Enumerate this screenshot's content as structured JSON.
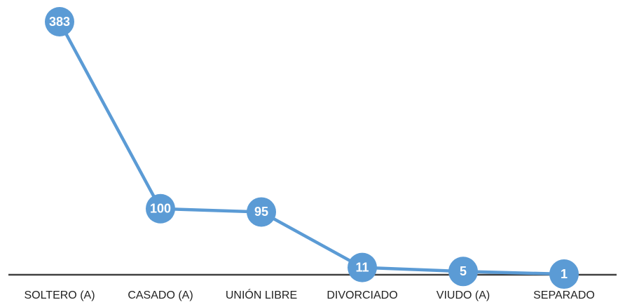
{
  "chart_data": {
    "type": "line",
    "categories": [
      "SOLTERO (A)",
      "CASADO (A)",
      "UNIÓN LIBRE",
      "DIVORCIADO",
      "VIUDO (A)",
      "SEPARADO"
    ],
    "values": [
      383,
      100,
      95,
      11,
      5,
      1
    ],
    "color": "#5b9bd5",
    "ylim": [
      0,
      400
    ]
  }
}
